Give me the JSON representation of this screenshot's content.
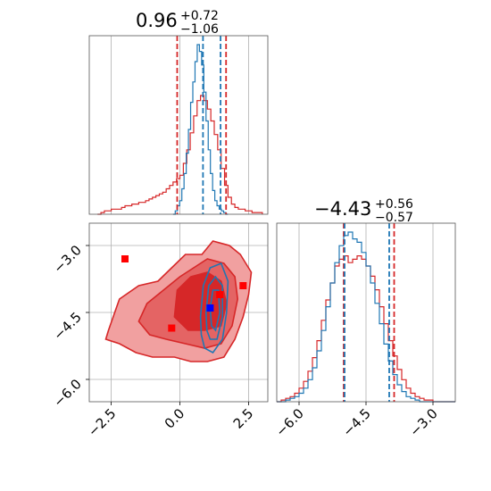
{
  "colors": {
    "red": "#d62728",
    "blue": "#1f77b4",
    "red_fill_light": "#f1a0a0",
    "red_fill_dark": "#d62728",
    "grid": "#b0b0b0",
    "marker_red": "#ff0000",
    "marker_blue": "#0000ff"
  },
  "chart_data": {
    "type": "corner",
    "parameters": [
      {
        "title": {
          "median": "0.96",
          "plus": "+0.72",
          "minus": "−1.06"
        },
        "range": [
          -3.3,
          3.2
        ],
        "ticks": [
          -2.5,
          0.0,
          2.5
        ],
        "tick_labels": [
          "−2.5",
          "0.0",
          "2.5"
        ],
        "quantile_lines_red": [
          -0.1,
          1.68
        ],
        "quantile_lines_blue": [
          0.84,
          1.48
        ],
        "hist_red": {
          "x_start": -3.0,
          "bin_width": 0.125,
          "counts": [
            0.0,
            0.01,
            0.02,
            0.02,
            0.03,
            0.03,
            0.03,
            0.04,
            0.05,
            0.05,
            0.06,
            0.06,
            0.07,
            0.07,
            0.08,
            0.09,
            0.1,
            0.11,
            0.12,
            0.13,
            0.15,
            0.17,
            0.19,
            0.21,
            0.23,
            0.3,
            0.38,
            0.48,
            0.58,
            0.67,
            0.7,
            0.67,
            0.62,
            0.55,
            0.47,
            0.38,
            0.27,
            0.17,
            0.1,
            0.06,
            0.04,
            0.03,
            0.03,
            0.02,
            0.02,
            0.01,
            0.01,
            0.01
          ]
        },
        "hist_blue": {
          "x_start": -0.25,
          "bin_width": 0.08,
          "counts": [
            0.0,
            0.02,
            0.05,
            0.08,
            0.15,
            0.24,
            0.36,
            0.5,
            0.66,
            0.78,
            0.9,
            1.0,
            0.96,
            0.88,
            0.72,
            0.55,
            0.38,
            0.24,
            0.14,
            0.08,
            0.05,
            0.03,
            0.02,
            0.01,
            0.0
          ]
        }
      },
      {
        "title": {
          "median": "−4.43",
          "plus": "+0.56",
          "minus": "−0.57"
        },
        "range": [
          -6.5,
          -2.5
        ],
        "ticks": [
          -6.0,
          -4.5,
          -3.0
        ],
        "tick_labels": [
          "−6.0",
          "−4.5",
          "−3.0"
        ],
        "quantile_lines_red": [
          -5.0,
          -3.87
        ],
        "quantile_lines_blue": [
          -4.98,
          -3.98
        ],
        "hist_red": {
          "x_start": -6.5,
          "bin_width": 0.1,
          "counts": [
            0.0,
            0.01,
            0.02,
            0.03,
            0.05,
            0.08,
            0.12,
            0.18,
            0.26,
            0.36,
            0.48,
            0.6,
            0.7,
            0.8,
            0.84,
            0.86,
            0.82,
            0.84,
            0.86,
            0.84,
            0.8,
            0.74,
            0.66,
            0.56,
            0.46,
            0.36,
            0.27,
            0.19,
            0.13,
            0.08,
            0.05,
            0.03,
            0.02,
            0.01,
            0.01,
            0.0,
            0.0,
            0.0,
            0.0,
            0.0
          ]
        },
        "hist_blue": {
          "x_start": -6.5,
          "bin_width": 0.1,
          "counts": [
            0.0,
            0.0,
            0.01,
            0.02,
            0.03,
            0.05,
            0.08,
            0.13,
            0.2,
            0.3,
            0.42,
            0.56,
            0.7,
            0.82,
            0.92,
            0.98,
            1.0,
            0.96,
            0.94,
            0.88,
            0.8,
            0.7,
            0.58,
            0.46,
            0.34,
            0.24,
            0.16,
            0.1,
            0.06,
            0.03,
            0.02,
            0.01,
            0.0,
            0.0,
            0.0,
            0.0,
            0.0,
            0.0,
            0.0,
            0.0
          ]
        }
      }
    ],
    "joint": {
      "x_param": 0,
      "y_param": 1,
      "red_contour_outer": [
        [
          -2.6,
          -4.9
        ],
        [
          -2.2,
          -4.2
        ],
        [
          -1.5,
          -3.9
        ],
        [
          -0.8,
          -3.8
        ],
        [
          -0.3,
          -3.5
        ],
        [
          0.2,
          -3.2
        ],
        [
          0.8,
          -3.2
        ],
        [
          1.2,
          -2.9
        ],
        [
          1.8,
          -3.0
        ],
        [
          2.2,
          -3.2
        ],
        [
          2.6,
          -3.6
        ],
        [
          2.5,
          -4.1
        ],
        [
          2.3,
          -4.6
        ],
        [
          2.0,
          -5.1
        ],
        [
          1.6,
          -5.5
        ],
        [
          1.0,
          -5.6
        ],
        [
          0.4,
          -5.6
        ],
        [
          -0.2,
          -5.5
        ],
        [
          -1.0,
          -5.5
        ],
        [
          -1.6,
          -5.4
        ],
        [
          -2.2,
          -5.2
        ],
        [
          -2.7,
          -5.1
        ]
      ],
      "red_contour_middle": [
        [
          -1.5,
          -4.7
        ],
        [
          -1.2,
          -4.3
        ],
        [
          -0.6,
          -4.0
        ],
        [
          0.0,
          -3.7
        ],
        [
          0.5,
          -3.5
        ],
        [
          1.0,
          -3.3
        ],
        [
          1.6,
          -3.4
        ],
        [
          2.0,
          -3.7
        ],
        [
          2.1,
          -4.2
        ],
        [
          1.9,
          -4.8
        ],
        [
          1.5,
          -5.2
        ],
        [
          0.9,
          -5.3
        ],
        [
          0.2,
          -5.2
        ],
        [
          -0.5,
          -5.1
        ],
        [
          -1.1,
          -5.0
        ]
      ],
      "red_contour_inner": [
        [
          -0.2,
          -4.6
        ],
        [
          -0.1,
          -4.0
        ],
        [
          0.4,
          -3.7
        ],
        [
          1.0,
          -3.6
        ],
        [
          1.5,
          -3.8
        ],
        [
          1.7,
          -4.3
        ],
        [
          1.5,
          -4.8
        ],
        [
          0.9,
          -4.9
        ],
        [
          0.3,
          -4.9
        ]
      ],
      "blue_contours": [
        [
          [
            0.75,
            -4.6
          ],
          [
            0.85,
            -3.9
          ],
          [
            1.1,
            -3.5
          ],
          [
            1.5,
            -3.4
          ],
          [
            1.75,
            -3.8
          ],
          [
            1.7,
            -4.5
          ],
          [
            1.55,
            -5.1
          ],
          [
            1.2,
            -5.4
          ],
          [
            0.9,
            -5.3
          ],
          [
            0.78,
            -5.0
          ]
        ],
        [
          [
            0.95,
            -4.5
          ],
          [
            1.05,
            -3.9
          ],
          [
            1.3,
            -3.7
          ],
          [
            1.55,
            -3.9
          ],
          [
            1.55,
            -4.6
          ],
          [
            1.35,
            -5.1
          ],
          [
            1.1,
            -5.1
          ],
          [
            0.98,
            -4.9
          ]
        ],
        [
          [
            1.1,
            -4.4
          ],
          [
            1.2,
            -4.0
          ],
          [
            1.4,
            -4.0
          ],
          [
            1.45,
            -4.5
          ],
          [
            1.3,
            -4.9
          ],
          [
            1.15,
            -4.8
          ]
        ]
      ],
      "red_markers": [
        [
          -2.0,
          -3.3
        ],
        [
          2.3,
          -3.9
        ],
        [
          -0.3,
          -4.85
        ],
        [
          1.45,
          -4.1
        ]
      ],
      "blue_markers": [
        [
          1.1,
          -4.4
        ]
      ]
    }
  }
}
